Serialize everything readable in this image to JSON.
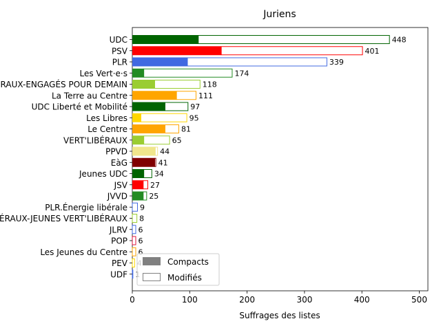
{
  "chart_data": {
    "type": "bar",
    "orientation": "horizontal",
    "stacked": "overlay",
    "title": "Juriens",
    "xlabel": "Suffrages des listes",
    "ylabel": "",
    "xlim": [
      0,
      515
    ],
    "xticks": [
      0,
      100,
      200,
      300,
      400,
      500
    ],
    "grid": false,
    "legend_position": "bottom-left",
    "legend": [
      {
        "name": "Compacts",
        "style": "filled",
        "color": "#808080"
      },
      {
        "name": "Modifiés",
        "style": "outline",
        "color": "#808080"
      }
    ],
    "categories": [
      "UDC",
      "PSV",
      "PLR",
      "Les Vert·e·s",
      "VERT'LIBÉRAUX-ENGAGÉS POUR DEMAIN",
      "La Terre au Centre",
      "UDC Liberté et Mobilité",
      "Les Libres",
      "Le Centre",
      "VERT'LIBÉRAUX",
      "PPVD",
      "EàG",
      "Jeunes UDC",
      "JSV",
      "JVVD",
      "PLR.Énergie libérale",
      "VERT'LIBÉRAUX-JEUNES VERT'LIBÉRAUX",
      "JLRV",
      "POP",
      "Les Jeunes du Centre",
      "PEV",
      "UDF"
    ],
    "colors": [
      "#006400",
      "#ff0000",
      "#4169e1",
      "#228b22",
      "#9acd32",
      "#ffa500",
      "#006400",
      "#ffd700",
      "#ffa500",
      "#9acd32",
      "#f0e68c",
      "#800000",
      "#006400",
      "#ff0000",
      "#228b22",
      "#4169e1",
      "#9acd32",
      "#4169e1",
      "#dc143c",
      "#ffa500",
      "#ffd700",
      "#4169e1"
    ],
    "series": [
      {
        "name": "Compacts",
        "values": [
          115,
          155,
          96,
          20,
          39,
          77,
          57,
          15,
          57,
          20,
          40,
          39,
          20,
          19,
          19,
          0,
          0,
          0,
          0,
          0,
          0,
          0
        ]
      },
      {
        "name": "Modifiés",
        "values": [
          333,
          246,
          243,
          154,
          79,
          34,
          40,
          80,
          24,
          45,
          4,
          2,
          14,
          8,
          6,
          9,
          8,
          6,
          6,
          6,
          4,
          1
        ]
      }
    ],
    "totals": [
      448,
      401,
      339,
      174,
      118,
      111,
      97,
      95,
      81,
      65,
      44,
      41,
      34,
      27,
      25,
      9,
      8,
      6,
      6,
      6,
      4,
      1
    ]
  }
}
